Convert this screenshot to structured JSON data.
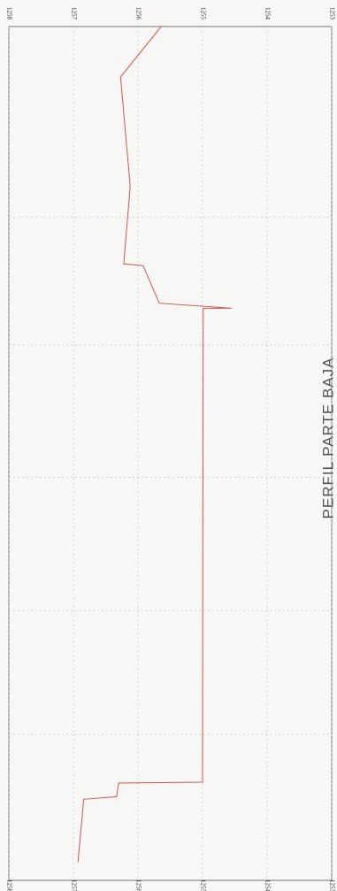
{
  "chart_data": {
    "type": "line",
    "title": "PERFIL PARTE BAJA",
    "x": [
      2.1,
      9.5,
      9.8,
      11.4,
      11.5,
      67.0,
      67.0,
      67.6,
      72.0,
      72.2,
      81.3,
      94.1,
      100
    ],
    "series": [
      {
        "color": "#d9534f",
        "values": [
          1256.93,
          1256.84,
          1256.33,
          1256.3,
          1255.0,
          1254.99,
          1254.55,
          1255.67,
          1255.92,
          1256.22,
          1256.12,
          1256.27,
          1255.64
        ]
      }
    ],
    "xlim": [
      0,
      100
    ],
    "xticks": [
      17.1,
      31.6,
      47.2,
      62.7,
      77.7
    ],
    "ylim": [
      1253,
      1258
    ],
    "yticks": [
      1258,
      1257,
      1256,
      1255,
      1254,
      1253
    ],
    "grid": true
  }
}
